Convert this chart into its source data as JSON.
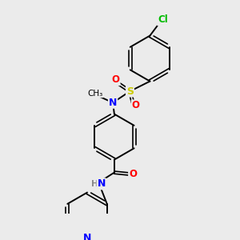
{
  "background_color": "#ebebeb",
  "bond_color": "#000000",
  "atom_colors": {
    "N": "#0000ff",
    "O": "#ff0000",
    "S": "#cccc00",
    "Cl": "#00bb00",
    "H": "#888888",
    "C": "#000000"
  },
  "figsize": [
    3.0,
    3.0
  ],
  "dpi": 100
}
